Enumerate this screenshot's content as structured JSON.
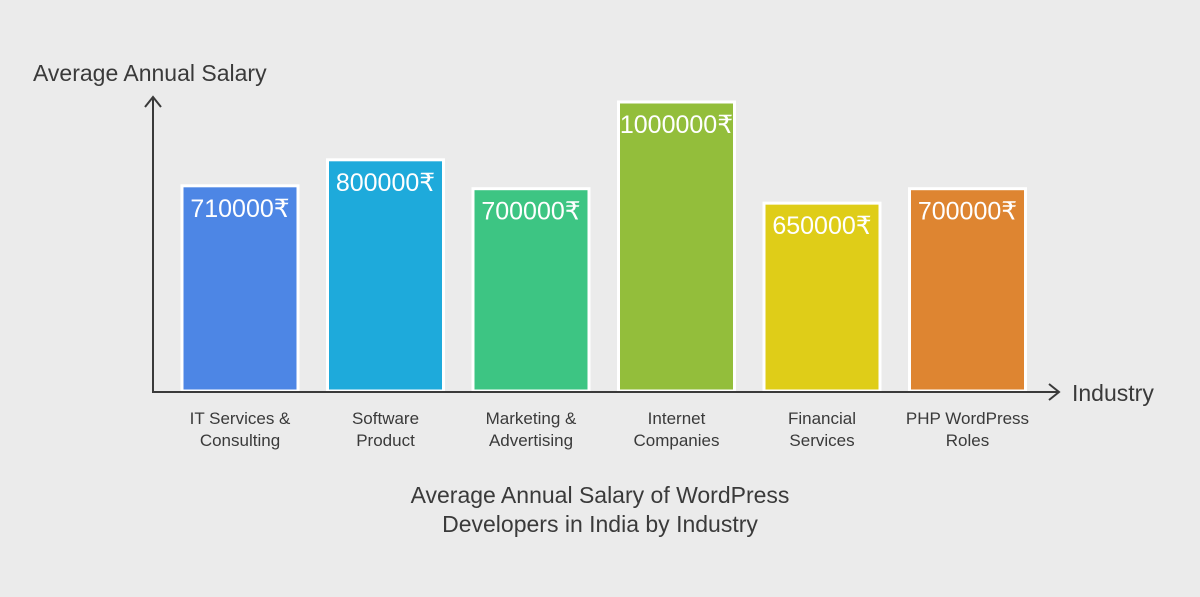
{
  "chart_data": {
    "type": "bar",
    "title_lines": [
      "Average Annual Salary of WordPress",
      "Developers in India by Industry"
    ],
    "ylabel": "Average Annual Salary",
    "xlabel": "Industry",
    "categories": [
      [
        "IT Services &",
        "Consulting"
      ],
      [
        "Software",
        "Product"
      ],
      [
        "Marketing &",
        "Advertising"
      ],
      [
        "Internet",
        "Companies"
      ],
      [
        "Financial",
        "Services"
      ],
      [
        "PHP WordPress",
        "Roles"
      ]
    ],
    "values": [
      710000,
      800000,
      700000,
      1000000,
      650000,
      700000
    ],
    "value_labels": [
      "710000₹",
      "800000₹",
      "700000₹",
      "1000000₹",
      "650000₹",
      "700000₹"
    ],
    "colors": [
      "#4d86e5",
      "#1eaadb",
      "#3dc583",
      "#93be3b",
      "#dfcd18",
      "#de8531"
    ],
    "ylim": [
      0,
      1000000
    ],
    "grid": false,
    "legend": "none"
  }
}
